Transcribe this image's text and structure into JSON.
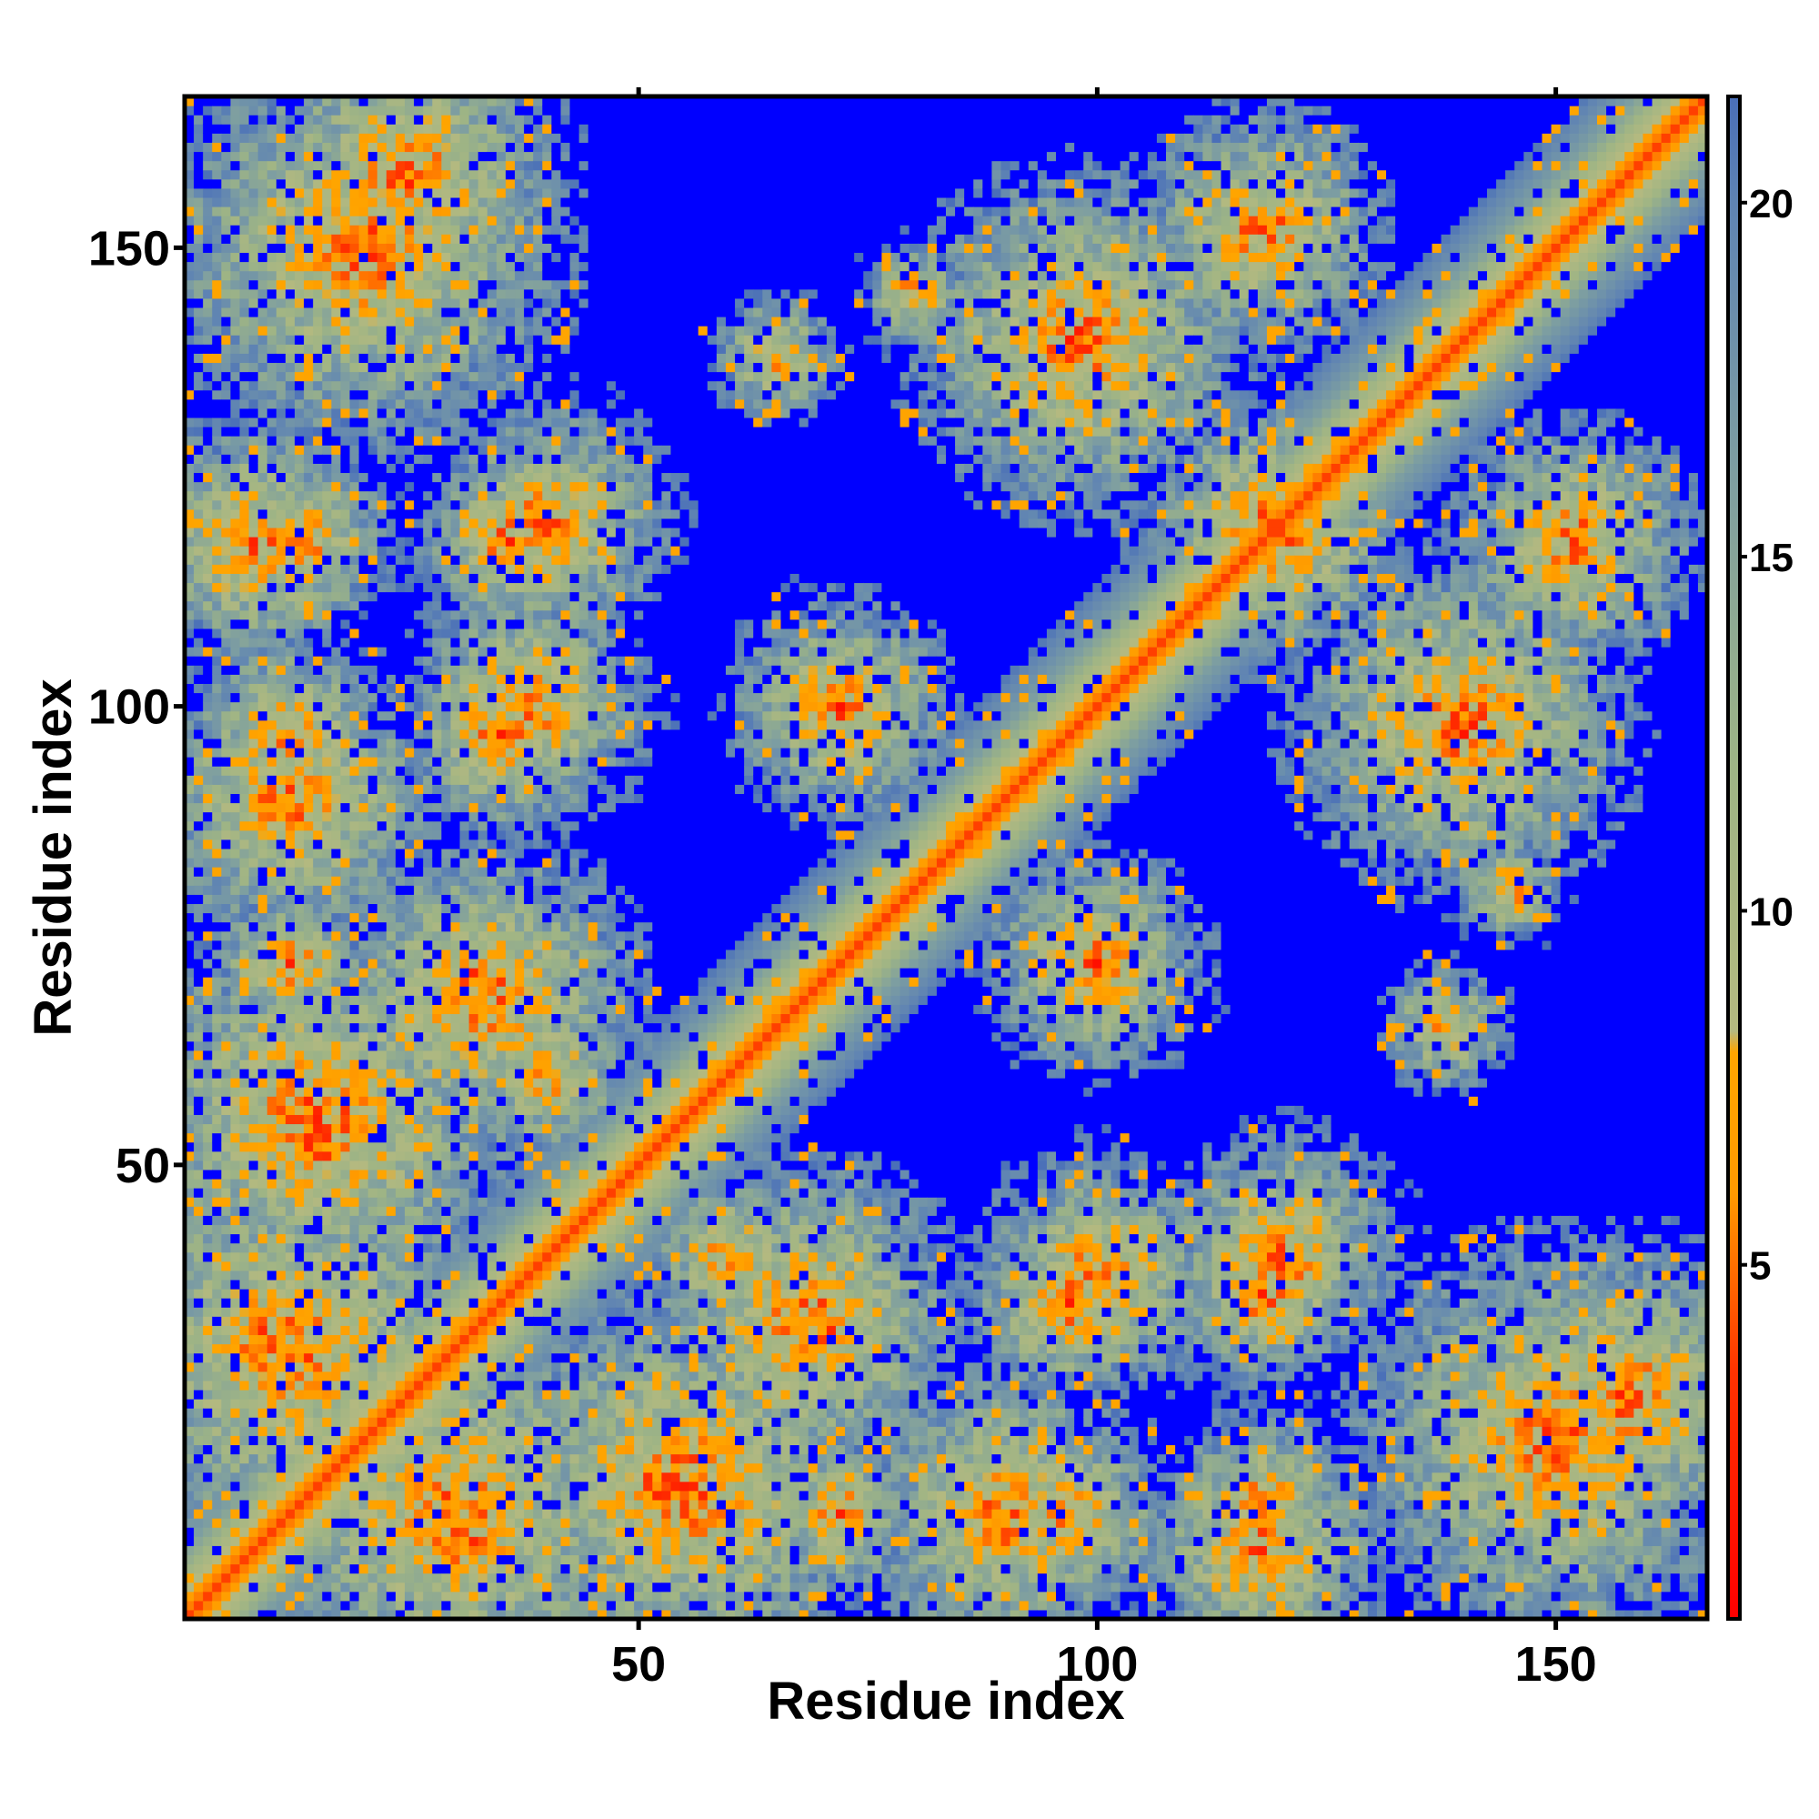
{
  "chart_data": {
    "type": "heatmap",
    "title": "",
    "xlabel": "Residue index",
    "ylabel": "Residue index",
    "xlim": [
      1,
      166
    ],
    "ylim": [
      1,
      166
    ],
    "n_residues": 166,
    "x_ticks": [
      50,
      100,
      150
    ],
    "y_ticks": [
      50,
      100,
      150
    ],
    "colorbar": {
      "ticks": [
        5,
        10,
        15,
        20
      ],
      "range": [
        0,
        21.5
      ],
      "colors": {
        "red": "#ff0000",
        "orange": "#ff9900",
        "sage": "#9eb485",
        "steel": "#5f84b3",
        "blue": "#0000ff"
      },
      "stops": [
        {
          "value": 0,
          "color": "#ff0000"
        },
        {
          "value": 3.5,
          "color": "#ff3300"
        },
        {
          "value": 6,
          "color": "#ff9900"
        },
        {
          "value": 8,
          "color": "#ffa500"
        },
        {
          "value": 8.3,
          "color": "#b4b980"
        },
        {
          "value": 12,
          "color": "#9eb485"
        },
        {
          "value": 16,
          "color": "#7f9fa0"
        },
        {
          "value": 20,
          "color": "#5f84b3"
        },
        {
          "value": 21.5,
          "color": "#4a6fb8"
        }
      ]
    },
    "blue_color": "#0000ff",
    "cutoff": 21.5,
    "secondary_structure_note": "Distance map: red diagonal, orange/sage contact blobs, blue background",
    "blobs": [
      {
        "x": 20,
        "y": 150,
        "r": 20,
        "s": 1.0
      },
      {
        "x": 13,
        "y": 118,
        "r": 9,
        "s": 1.0
      },
      {
        "x": 36,
        "y": 118,
        "r": 12,
        "s": 0.75
      },
      {
        "x": 12,
        "y": 97,
        "r": 12,
        "s": 0.8
      },
      {
        "x": 35,
        "y": 97,
        "r": 12,
        "s": 0.85
      },
      {
        "x": 12,
        "y": 72,
        "r": 10,
        "s": 0.8
      },
      {
        "x": 32,
        "y": 70,
        "r": 13,
        "s": 1.0
      },
      {
        "x": 15,
        "y": 55,
        "r": 20,
        "s": 1.0
      },
      {
        "x": 9,
        "y": 31,
        "r": 11,
        "s": 1.0
      },
      {
        "x": 30,
        "y": 12,
        "r": 20,
        "s": 1.0
      },
      {
        "x": 52,
        "y": 15,
        "r": 14,
        "s": 0.9
      },
      {
        "x": 68,
        "y": 33,
        "r": 16,
        "s": 1.0
      },
      {
        "x": 60,
        "y": 40,
        "r": 10,
        "s": 0.8
      },
      {
        "x": 90,
        "y": 12,
        "r": 16,
        "s": 0.9
      },
      {
        "x": 100,
        "y": 38,
        "r": 13,
        "s": 0.9
      },
      {
        "x": 120,
        "y": 40,
        "r": 14,
        "s": 0.85
      },
      {
        "x": 118,
        "y": 8,
        "r": 12,
        "s": 1.0
      },
      {
        "x": 158,
        "y": 25,
        "r": 16,
        "s": 0.95
      },
      {
        "x": 72,
        "y": 100,
        "r": 12,
        "s": 0.9
      },
      {
        "x": 100,
        "y": 72,
        "r": 12,
        "s": 0.9
      },
      {
        "x": 98,
        "y": 140,
        "r": 17,
        "s": 1.0
      },
      {
        "x": 120,
        "y": 118,
        "r": 13,
        "s": 0.9
      },
      {
        "x": 118,
        "y": 152,
        "r": 12,
        "s": 1.0
      },
      {
        "x": 152,
        "y": 118,
        "r": 12,
        "s": 1.0
      },
      {
        "x": 140,
        "y": 97,
        "r": 14,
        "s": 0.95
      },
      {
        "x": 65,
        "y": 138,
        "r": 10,
        "s": 0.6
      },
      {
        "x": 138,
        "y": 65,
        "r": 10,
        "s": 0.6
      },
      {
        "x": 80,
        "y": 145,
        "r": 10,
        "s": 0.5
      },
      {
        "x": 100,
        "y": 100,
        "r": 8,
        "s": 0.5
      }
    ]
  }
}
